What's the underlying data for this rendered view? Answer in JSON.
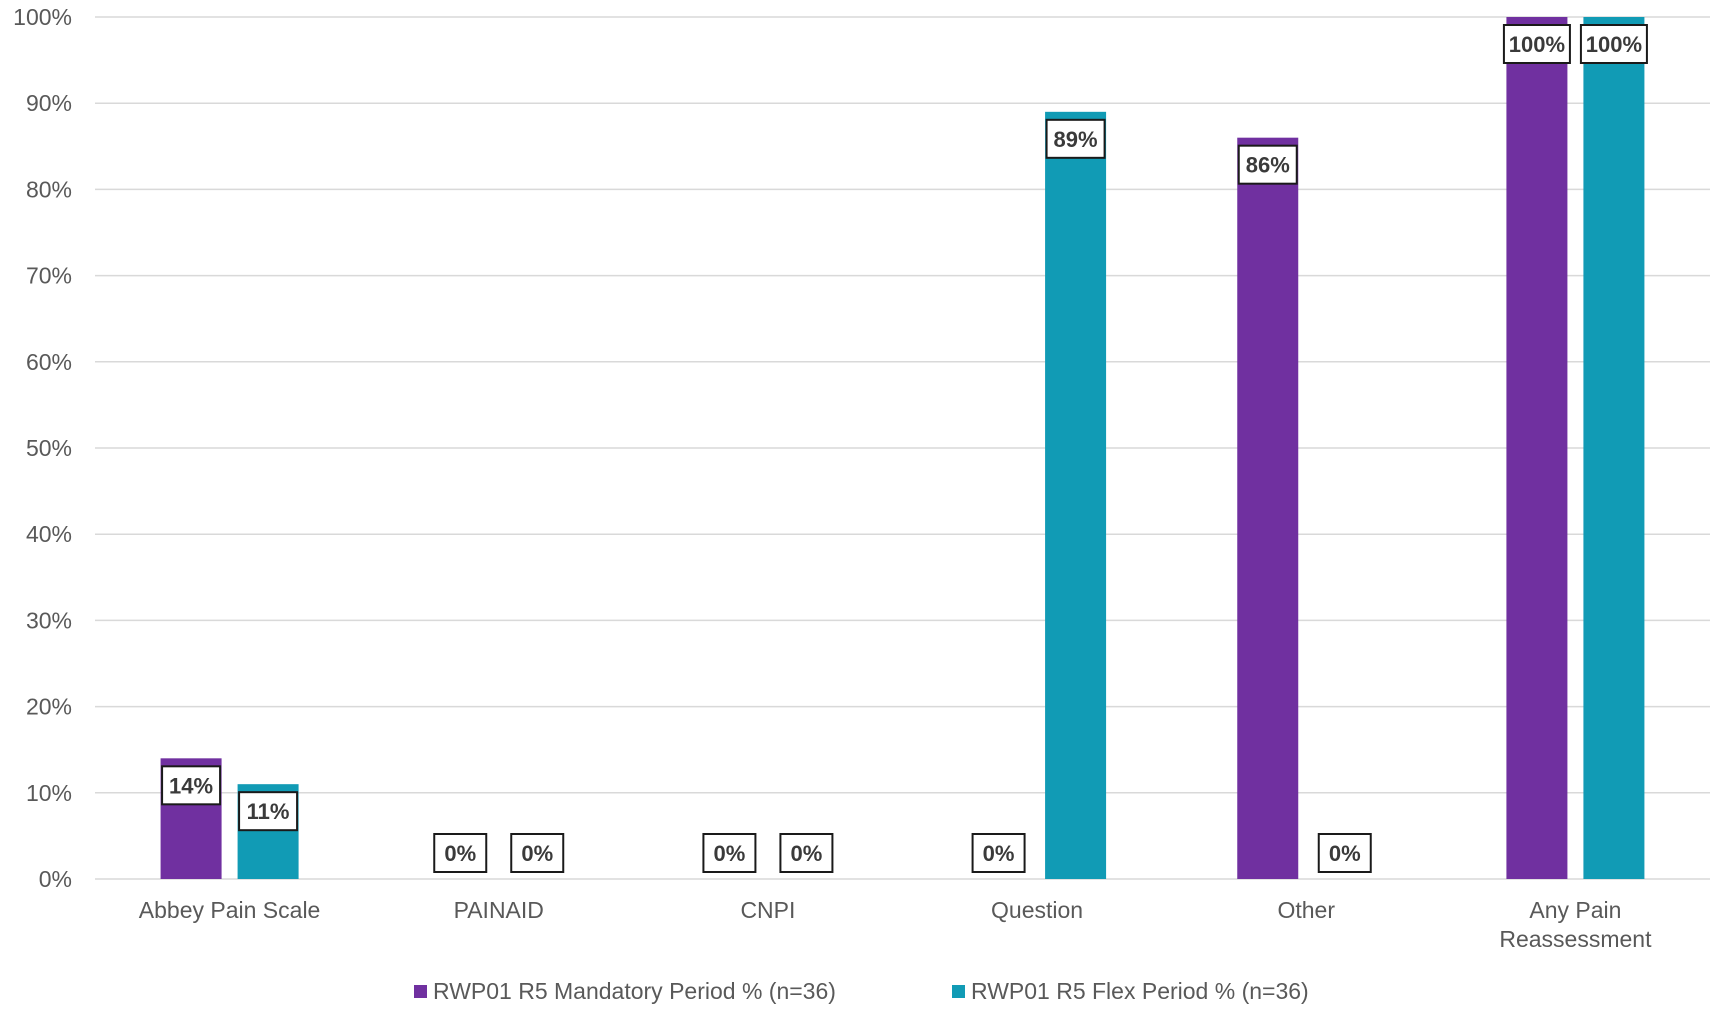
{
  "chart_data": {
    "type": "bar",
    "categories": [
      [
        "Abbey Pain Scale"
      ],
      [
        "PAINAID"
      ],
      [
        "CNPI"
      ],
      [
        "Question"
      ],
      [
        "Other"
      ],
      [
        "Any Pain",
        "Reassessment"
      ]
    ],
    "series": [
      {
        "name": "RWP01 R5 Mandatory Period % (n=36)",
        "color": "#7030a0",
        "values": [
          14,
          0,
          0,
          0,
          86,
          100
        ],
        "labels": [
          "14%",
          "0%",
          "0%",
          "0%",
          "86%",
          "100%"
        ]
      },
      {
        "name": "RWP01 R5 Flex Period % (n=36)",
        "color": "#119bb5",
        "values": [
          11,
          0,
          0,
          89,
          0,
          100
        ],
        "labels": [
          "11%",
          "0%",
          "0%",
          "89%",
          "0%",
          "100%"
        ]
      }
    ],
    "ylim": [
      0,
      100
    ],
    "yticks": [
      {
        "value": 0,
        "label": "0%"
      },
      {
        "value": 10,
        "label": "10%"
      },
      {
        "value": 20,
        "label": "20%"
      },
      {
        "value": 30,
        "label": "30%"
      },
      {
        "value": 40,
        "label": "40%"
      },
      {
        "value": 50,
        "label": "50%"
      },
      {
        "value": 60,
        "label": "60%"
      },
      {
        "value": 70,
        "label": "70%"
      },
      {
        "value": 80,
        "label": "80%"
      },
      {
        "value": 90,
        "label": "90%"
      },
      {
        "value": 100,
        "label": "100%"
      }
    ],
    "grid": true,
    "legend": "bottom"
  }
}
